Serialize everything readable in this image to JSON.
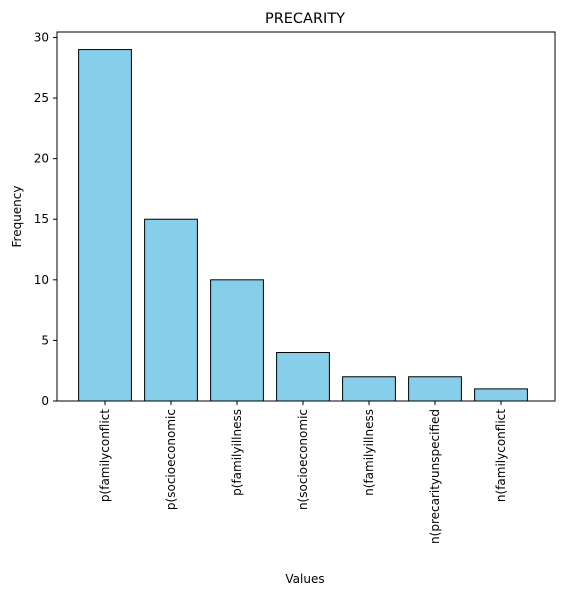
{
  "chart_data": {
    "type": "bar",
    "title": "PRECARITY",
    "xlabel": "Values",
    "ylabel": "Frequency",
    "categories": [
      "p(familyconflict",
      "p(socioeconomic",
      "p(familyillness",
      "n(socioeconomic",
      "n(familyillness",
      "n(precarityunspecified",
      "n(familyconflict"
    ],
    "values": [
      29,
      15,
      10,
      4,
      2,
      2,
      1
    ],
    "ylim": [
      0,
      30.45
    ],
    "yticks": [
      0,
      5,
      10,
      15,
      20,
      25,
      30
    ],
    "grid": false,
    "legend": "none",
    "colors": {
      "bar_fill": "#87CEEB",
      "bar_edge": "#000000",
      "axis": "#000000"
    }
  }
}
